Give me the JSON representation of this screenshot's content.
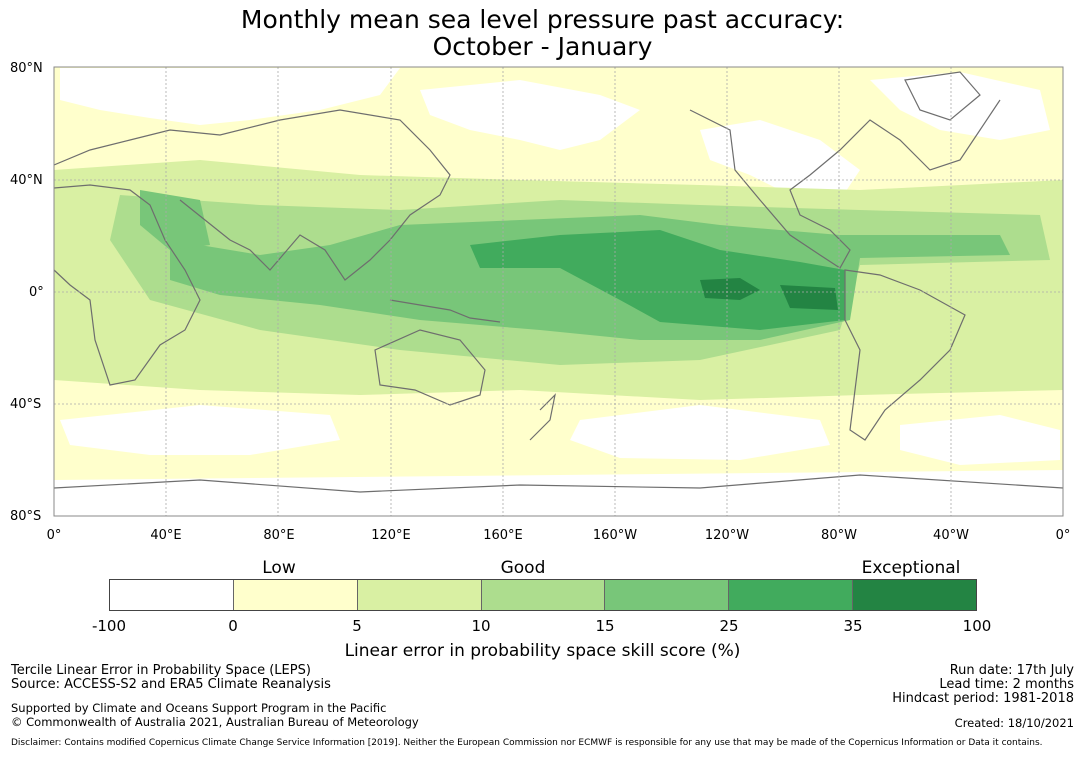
{
  "title_line1": "Monthly mean sea level pressure past accuracy:",
  "title_line2": "October - January",
  "lat_labels": [
    "80°N",
    "40°N",
    "0°",
    "40°S",
    "80°S"
  ],
  "lon_labels": [
    "0°",
    "40°E",
    "80°E",
    "120°E",
    "160°E",
    "160°W",
    "120°W",
    "80°W",
    "40°W",
    "0°"
  ],
  "category_labels": {
    "low": "Low",
    "good": "Good",
    "exceptional": "Exceptional"
  },
  "colorbar": {
    "ticks": [
      "-100",
      "0",
      "5",
      "10",
      "15",
      "25",
      "35",
      "100"
    ],
    "colors": [
      "#ffffff",
      "#ffffcc",
      "#d9f0a3",
      "#addd8e",
      "#78c679",
      "#41ab5d",
      "#238443"
    ],
    "label": "Linear error in probability space skill score (%)"
  },
  "colors": {
    "ocean_default": "#ffffcc",
    "coastline": "#6e6e6e",
    "grid": "#aaaaaa"
  },
  "info_left": {
    "line1": "Tercile Linear Error in Probability Space (LEPS)",
    "line2": "Source: ACCESS-S2 and ERA5 Climate Reanalysis",
    "line3": "Supported by Climate and Oceans Support Program in the Pacific",
    "line4": "© Commonwealth of Australia 2021, Australian Bureau of Meteorology"
  },
  "info_right": {
    "run_date": "Run date: 17th July",
    "lead_time": "Lead time: 2 months",
    "hindcast": "Hindcast period: 1981-2018",
    "created": "Created: 18/10/2021"
  },
  "disclaimer": "Disclaimer: Contains modified Copernicus Climate Change Service Information [2019]. Neither the European Commission nor ECMWF is responsible for any use that may be made of the Copernicus Information or Data it contains."
}
